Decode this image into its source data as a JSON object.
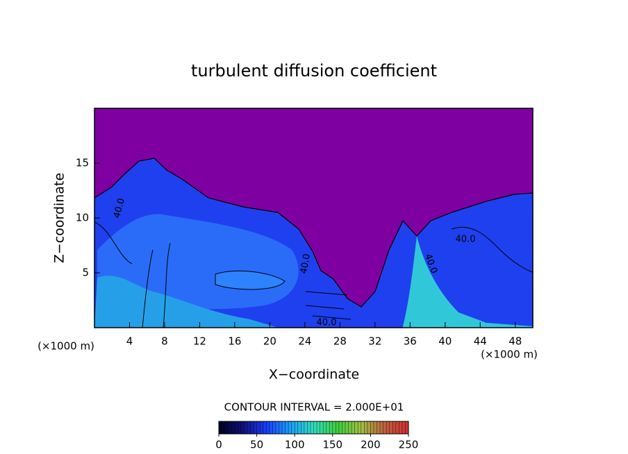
{
  "chart_data": {
    "type": "contour",
    "title": "turbulent diffusion coefficient",
    "x_label": "X−coordinate",
    "y_label": "Z−coordinate",
    "x_unit_label": "(×1000 m)",
    "xlim": [
      0,
      50
    ],
    "xticks": [
      4,
      8,
      12,
      16,
      20,
      24,
      28,
      32,
      36,
      40,
      44,
      48
    ],
    "ylim": [
      0,
      20
    ],
    "yticks": [
      5,
      10,
      15
    ],
    "contour_interval_label": "CONTOUR INTERVAL = 2.000E+01",
    "contour_labels": [
      "40.0",
      "40.0",
      "40.0",
      "40.0",
      "40.0"
    ],
    "colorbar": {
      "lim": [
        0,
        250
      ],
      "ticks": [
        0,
        50,
        100,
        150,
        200,
        250
      ],
      "colormap": [
        "#000020",
        "#10107a",
        "#1a3cff",
        "#1aa0ff",
        "#30e0c0",
        "#40d040",
        "#a0c040",
        "#c06040",
        "#d03030"
      ]
    },
    "background_color": "#7f00a0"
  }
}
